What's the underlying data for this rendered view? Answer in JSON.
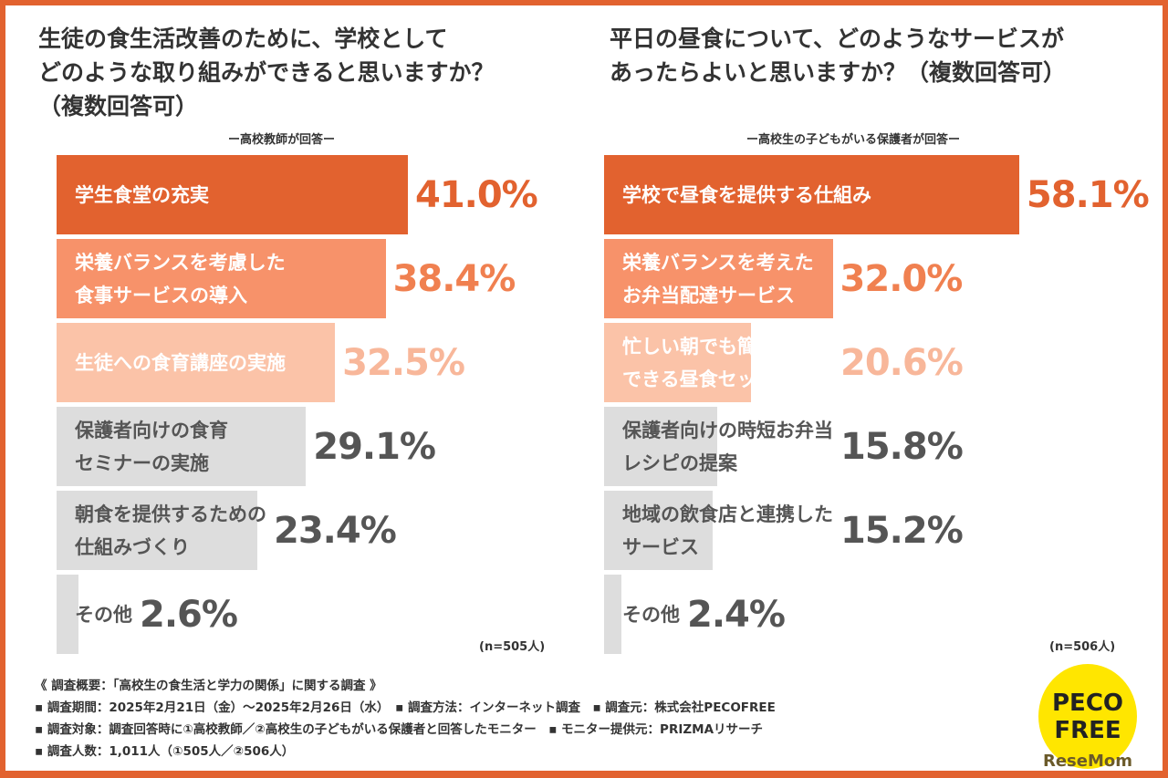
{
  "chart_data": [
    {
      "type": "bar",
      "orientation": "horizontal",
      "title": "生徒の食生活改善のために、学校として\nどのような取り組みができると思いますか？\n（複数回答可）",
      "subtitle": "ー高校教師が回答ー",
      "n": "(n=505人)",
      "unit": "%",
      "categories": [
        "学生食堂の充実",
        "栄養バランスを考慮した\n食事サービスの導入",
        "生徒への食育講座の実施",
        "保護者向けの食育\nセミナーの実施",
        "朝食を提供するための\n仕組みづくり",
        "その他"
      ],
      "values": [
        41.0,
        38.4,
        32.5,
        29.1,
        23.4,
        2.6
      ],
      "labels": [
        "41.0%",
        "38.4%",
        "32.5%",
        "29.1%",
        "23.4%",
        "2.6%"
      ],
      "colors": [
        "#E2622F",
        "#F7926A",
        "#FBC3A8",
        "#DDDDDD",
        "#DDDDDD",
        "#DDDDDD"
      ]
    },
    {
      "type": "bar",
      "orientation": "horizontal",
      "title": "平日の昼食について、どのようなサービスが\nあったらよいと思いますか？（複数回答可）",
      "subtitle": "ー高校生の子どもがいる保護者が回答ー",
      "n": "(n=506人)",
      "unit": "%",
      "categories": [
        "学校で昼食を提供する仕組み",
        "栄養バランスを考えた\nお弁当配達サービス",
        "忙しい朝でも簡単に準備\nできる昼食セット",
        "保護者向けの時短お弁当\nレシピの提案",
        "地域の飲食店と連携した\nサービス",
        "その他"
      ],
      "values": [
        58.1,
        32.0,
        20.6,
        15.8,
        15.2,
        2.4
      ],
      "labels": [
        "58.1%",
        "32.0%",
        "20.6%",
        "15.8%",
        "15.2%",
        "2.4%"
      ],
      "colors": [
        "#E2622F",
        "#F7926A",
        "#FBC3A8",
        "#DDDDDD",
        "#DDDDDD",
        "#DDDDDD"
      ]
    }
  ],
  "notes": [
    "《 調査概要：「高校生の食生活と学力の関係」に関する調査 》",
    "▪ 調査期間：2025年2月21日（金）～2025年2月26日（水）　▪ 調査方法：インターネット調査　▪ 調査元：株式会社PECOFREE",
    "▪ 調査対象：調査回答時に①高校教師／②高校生の子どもがいる保護者と回答したモニター　▪ モニター提供元：PRIZMAリサーチ",
    "▪ 調査人数：1,011人（①505人／②506人）"
  ],
  "logo": {
    "brand": "PECO FREE",
    "site": "ReseMom"
  }
}
